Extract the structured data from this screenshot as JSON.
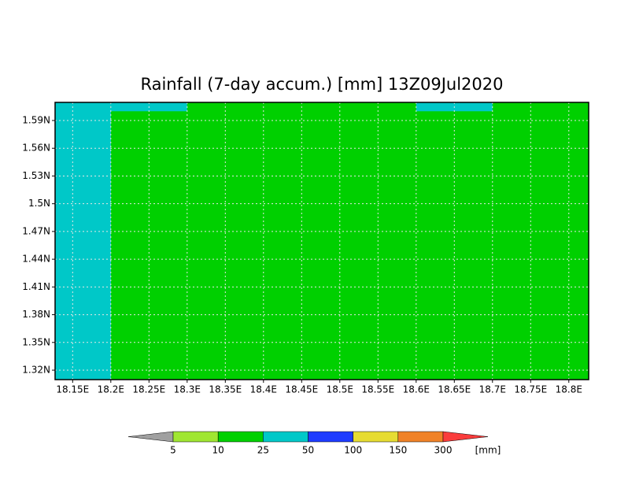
{
  "map": {
    "title": "Rainfall (7-day accum.) [mm] 13Z09Jul2020",
    "xlim": [
      18.127,
      18.826
    ],
    "ylim": [
      1.3098,
      1.6096
    ],
    "xticks": [
      {
        "value": 18.15,
        "label": "18.15E"
      },
      {
        "value": 18.2,
        "label": "18.2E"
      },
      {
        "value": 18.25,
        "label": "18.25E"
      },
      {
        "value": 18.3,
        "label": "18.3E"
      },
      {
        "value": 18.35,
        "label": "18.35E"
      },
      {
        "value": 18.4,
        "label": "18.4E"
      },
      {
        "value": 18.45,
        "label": "18.45E"
      },
      {
        "value": 18.5,
        "label": "18.5E"
      },
      {
        "value": 18.55,
        "label": "18.55E"
      },
      {
        "value": 18.6,
        "label": "18.6E"
      },
      {
        "value": 18.65,
        "label": "18.65E"
      },
      {
        "value": 18.7,
        "label": "18.7E"
      },
      {
        "value": 18.75,
        "label": "18.75E"
      },
      {
        "value": 18.8,
        "label": "18.8E"
      }
    ],
    "yticks": [
      {
        "value": 1.32,
        "label": "1.32N"
      },
      {
        "value": 1.35,
        "label": "1.35N"
      },
      {
        "value": 1.38,
        "label": "1.38N"
      },
      {
        "value": 1.41,
        "label": "1.41N"
      },
      {
        "value": 1.44,
        "label": "1.44N"
      },
      {
        "value": 1.47,
        "label": "1.47N"
      },
      {
        "value": 1.5,
        "label": "1.5N"
      },
      {
        "value": 1.53,
        "label": "1.53N"
      },
      {
        "value": 1.56,
        "label": "1.56N"
      },
      {
        "value": 1.59,
        "label": "1.59N"
      }
    ],
    "grid": true,
    "cells": [
      {
        "lon": [
          18.2,
          18.826
        ],
        "lat": [
          1.3098,
          1.6096
        ],
        "color": "#00d000"
      },
      {
        "lon": [
          18.127,
          18.2
        ],
        "lat": [
          1.3098,
          1.6096
        ],
        "color": "#00c8c8"
      },
      {
        "lon": [
          18.2,
          18.3
        ],
        "lat": [
          1.6,
          1.6096
        ],
        "color": "#00c8c8"
      },
      {
        "lon": [
          18.6,
          18.7
        ],
        "lat": [
          1.6,
          1.6096
        ],
        "color": "#00c8c8"
      }
    ]
  },
  "colorbar": {
    "levels": [
      5,
      10,
      25,
      50,
      100,
      150,
      300
    ],
    "colors": [
      "#a0a0a0",
      "#a0e632",
      "#00d000",
      "#00c8c8",
      "#1e3cff",
      "#e6dc32",
      "#f08228",
      "#fa3c3c"
    ],
    "unit": "[mm]"
  }
}
